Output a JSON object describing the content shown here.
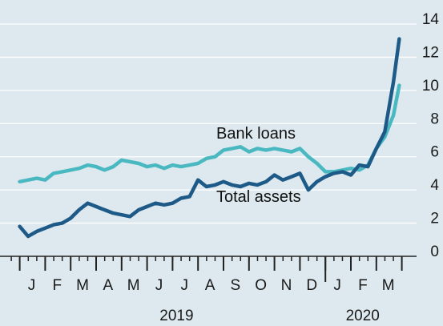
{
  "chart_data": {
    "type": "line",
    "title": "",
    "xlabel": "",
    "ylabel": "",
    "ylim": [
      0,
      14
    ],
    "yticks": [
      0,
      2,
      4,
      6,
      8,
      10,
      12,
      14
    ],
    "y_axis_side": "right",
    "grid": "horizontal",
    "month_labels": [
      "J",
      "F",
      "M",
      "A",
      "M",
      "J",
      "J",
      "A",
      "S",
      "O",
      "N",
      "D",
      "J",
      "F",
      "M"
    ],
    "year_labels": [
      "2019",
      "2020"
    ],
    "series": [
      {
        "name": "Bank loans",
        "color": "#4ab8c1",
        "x": [
          0,
          0.33,
          0.67,
          1,
          1.33,
          1.67,
          2,
          2.33,
          2.67,
          3,
          3.33,
          3.67,
          4,
          4.33,
          4.67,
          5,
          5.33,
          5.67,
          6,
          6.33,
          6.67,
          7,
          7.33,
          7.67,
          8,
          8.33,
          8.67,
          9,
          9.33,
          9.67,
          10,
          10.33,
          10.67,
          11,
          11.33,
          11.67,
          12,
          12.33,
          12.67,
          13,
          13.33,
          13.67,
          14,
          14.33,
          14.67,
          14.9
        ],
        "values": [
          4.5,
          4.6,
          4.7,
          4.6,
          5.0,
          5.1,
          5.2,
          5.3,
          5.5,
          5.4,
          5.2,
          5.4,
          5.8,
          5.7,
          5.6,
          5.4,
          5.5,
          5.3,
          5.5,
          5.4,
          5.5,
          5.6,
          5.9,
          6.0,
          6.4,
          6.5,
          6.6,
          6.3,
          6.5,
          6.4,
          6.5,
          6.4,
          6.3,
          6.5,
          6.0,
          5.6,
          5.1,
          5.1,
          5.2,
          5.3,
          5.2,
          5.5,
          6.5,
          7.2,
          8.5,
          10.3
        ]
      },
      {
        "name": "Total assets",
        "color": "#1d5a87",
        "x": [
          0,
          0.33,
          0.67,
          1,
          1.33,
          1.67,
          2,
          2.33,
          2.67,
          3,
          3.33,
          3.67,
          4,
          4.33,
          4.67,
          5,
          5.33,
          5.67,
          6,
          6.33,
          6.67,
          7,
          7.33,
          7.67,
          8,
          8.33,
          8.67,
          9,
          9.33,
          9.67,
          10,
          10.33,
          10.67,
          11,
          11.33,
          11.67,
          12,
          12.33,
          12.67,
          13,
          13.33,
          13.67,
          14,
          14.33,
          14.67,
          14.9
        ],
        "values": [
          1.8,
          1.2,
          1.5,
          1.7,
          1.9,
          2.0,
          2.3,
          2.8,
          3.2,
          3.0,
          2.8,
          2.6,
          2.5,
          2.4,
          2.8,
          3.0,
          3.2,
          3.1,
          3.2,
          3.5,
          3.6,
          4.6,
          4.2,
          4.3,
          4.5,
          4.3,
          4.2,
          4.4,
          4.3,
          4.5,
          4.9,
          4.6,
          4.8,
          5.0,
          4.0,
          4.5,
          4.8,
          5.0,
          5.1,
          4.9,
          5.5,
          5.4,
          6.5,
          7.5,
          10.5,
          13.1
        ]
      }
    ],
    "annotations": [
      {
        "text": "Bank loans",
        "series": "Bank loans"
      },
      {
        "text": "Total assets",
        "series": "Total assets"
      }
    ]
  }
}
